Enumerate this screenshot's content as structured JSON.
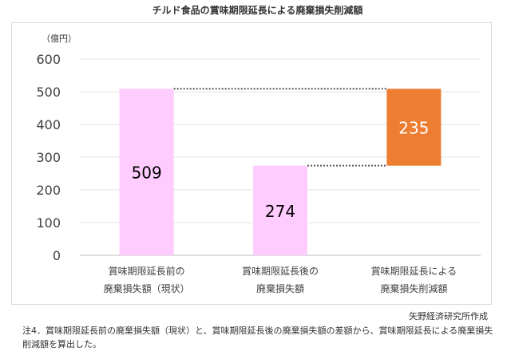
{
  "title": "チルド食品の賞味期限延長による廃棄損失削減額",
  "source": "矢野経済研究所作成",
  "note": "注4．賞味期限延長前の廃棄損失額（現状）と、賞味期限延長後の廃棄損失額の差額から、賞味期限延長による廃棄損失削減額を算出した。",
  "chart_data": {
    "type": "bar",
    "subtype": "waterfall",
    "unit_label": "（億円）",
    "ylim": [
      0,
      600
    ],
    "yticks": [
      0,
      100,
      200,
      300,
      400,
      500,
      600
    ],
    "grid": true,
    "categories": [
      [
        "賞味期限延長前の",
        "廃棄損失額（現状）"
      ],
      [
        "賞味期限延長後の",
        "廃棄損失額"
      ],
      [
        "賞味期限延長による",
        "廃棄損失削減額"
      ]
    ],
    "bars": [
      {
        "value": 509,
        "base": 0,
        "color": "#ffccff",
        "label": "509",
        "label_color": "#000000"
      },
      {
        "value": 274,
        "base": 0,
        "color": "#ffccff",
        "label": "274",
        "label_color": "#000000"
      },
      {
        "value": 235,
        "base": 274,
        "color": "#ed7d31",
        "label": "235",
        "label_color": "#ffffff"
      }
    ],
    "connectors": [
      {
        "from_bar": 0,
        "to_bar": 2,
        "level": 509
      },
      {
        "from_bar": 1,
        "to_bar": 2,
        "level": 274
      }
    ]
  }
}
